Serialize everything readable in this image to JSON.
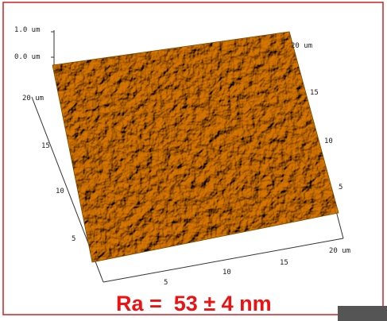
{
  "z_axis": {
    "top": "1.0 um",
    "bottom": "0.0 um"
  },
  "left_axis": [
    "20 um",
    "15",
    "10",
    "5"
  ],
  "right_axis": [
    "20 um",
    "15",
    "10",
    "5"
  ],
  "bottom_axis": [
    "5",
    "10",
    "15",
    "20 um"
  ],
  "roughness": "Ra =  53 ± 4 nm"
}
